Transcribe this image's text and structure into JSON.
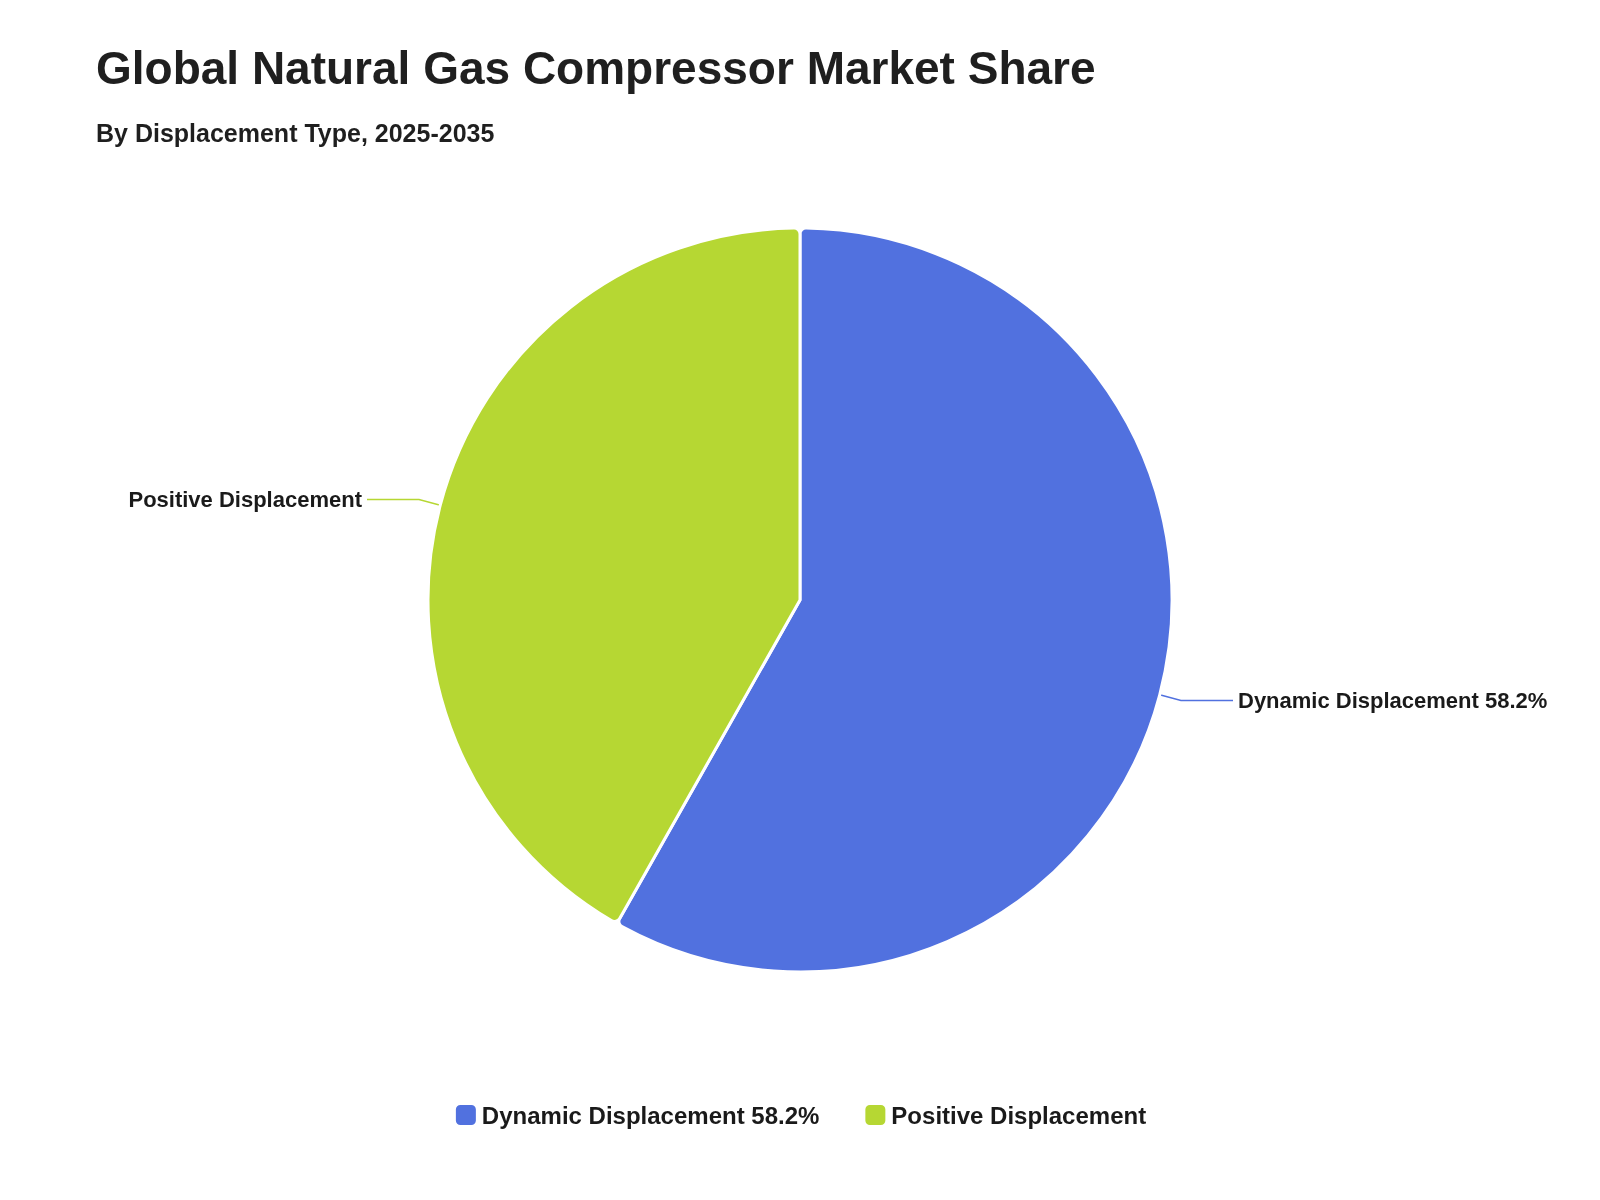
{
  "chart_data": {
    "type": "pie",
    "title": "Global Natural Gas Compressor Market Share",
    "subtitle": "By Displacement Type, 2025-2035",
    "categories": [
      "Dynamic Displacement 58.2%",
      "Positive Displacement"
    ],
    "values": [
      58.2,
      41.8
    ],
    "colors": [
      "#5171df",
      "#b6d733"
    ],
    "legend": "bottom"
  }
}
